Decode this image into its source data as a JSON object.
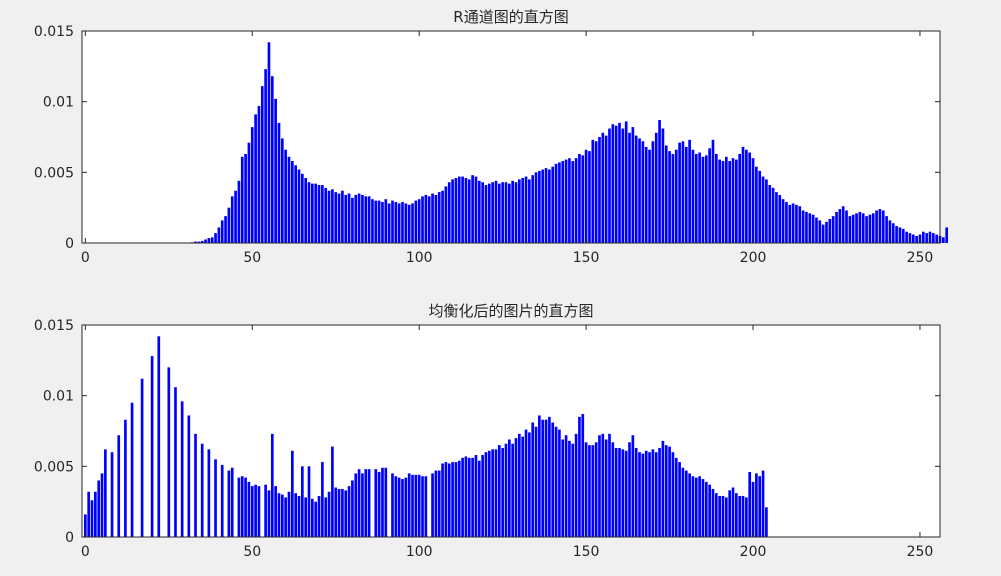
{
  "figure": {
    "background": "#f0f0f0",
    "axes_background": "#ffffff",
    "bar_color": "#0000ff"
  },
  "chart_data": [
    {
      "type": "bar",
      "title": "R通道图的直方图",
      "xlabel": "",
      "ylabel": "",
      "xlim": [
        -1,
        256
      ],
      "ylim": [
        0,
        0.015
      ],
      "xticks": [
        "0",
        "50",
        "100",
        "150",
        "200",
        "250"
      ],
      "yticks": [
        "0",
        "0.005",
        "0.01",
        "0.015"
      ],
      "grid": false,
      "legend": "none",
      "x_start": 0,
      "values": [
        0,
        0,
        0,
        0,
        0,
        0,
        0,
        0,
        0,
        0,
        0,
        0,
        0,
        0,
        0,
        0,
        0,
        0,
        0,
        0,
        0,
        0,
        0,
        0,
        0,
        0,
        0,
        0,
        0,
        0,
        0,
        0,
        5e-05,
        0.0001,
        0.0001,
        0.00015,
        0.00025,
        0.00035,
        0.0004,
        0.0007,
        0.0011,
        0.0016,
        0.0019,
        0.0025,
        0.0033,
        0.0037,
        0.0044,
        0.0061,
        0.0063,
        0.0071,
        0.0082,
        0.0091,
        0.0097,
        0.0111,
        0.0123,
        0.0142,
        0.0118,
        0.0102,
        0.0085,
        0.0074,
        0.0066,
        0.0061,
        0.0058,
        0.0055,
        0.0052,
        0.0049,
        0.0046,
        0.0043,
        0.0042,
        0.0042,
        0.0041,
        0.0041,
        0.0039,
        0.0037,
        0.0038,
        0.0036,
        0.0035,
        0.0037,
        0.0034,
        0.0035,
        0.0032,
        0.0034,
        0.0035,
        0.0034,
        0.0033,
        0.0033,
        0.0031,
        0.003,
        0.003,
        0.0029,
        0.0031,
        0.0028,
        0.003,
        0.0029,
        0.0028,
        0.0029,
        0.0028,
        0.0027,
        0.0028,
        0.003,
        0.0031,
        0.0033,
        0.0034,
        0.0033,
        0.0035,
        0.0034,
        0.0036,
        0.0037,
        0.004,
        0.0043,
        0.0045,
        0.0046,
        0.0047,
        0.0047,
        0.0046,
        0.0045,
        0.0048,
        0.0047,
        0.0044,
        0.0043,
        0.0041,
        0.0042,
        0.0043,
        0.0044,
        0.0042,
        0.0043,
        0.0043,
        0.0042,
        0.0044,
        0.0043,
        0.0045,
        0.0046,
        0.0047,
        0.0045,
        0.0048,
        0.005,
        0.0051,
        0.0052,
        0.0053,
        0.0052,
        0.0054,
        0.0056,
        0.0057,
        0.0058,
        0.0059,
        0.006,
        0.0058,
        0.006,
        0.0063,
        0.0062,
        0.0066,
        0.0065,
        0.0073,
        0.0072,
        0.0075,
        0.0078,
        0.0076,
        0.0081,
        0.0084,
        0.0083,
        0.0085,
        0.0081,
        0.0086,
        0.0078,
        0.0082,
        0.0076,
        0.0074,
        0.0072,
        0.0068,
        0.0066,
        0.0072,
        0.0078,
        0.0087,
        0.0081,
        0.0069,
        0.0065,
        0.0063,
        0.0066,
        0.0071,
        0.0072,
        0.0068,
        0.0073,
        0.0066,
        0.0063,
        0.0064,
        0.0061,
        0.0062,
        0.0067,
        0.0073,
        0.0063,
        0.0059,
        0.0058,
        0.0061,
        0.0058,
        0.006,
        0.0059,
        0.0063,
        0.0068,
        0.0066,
        0.0064,
        0.006,
        0.0054,
        0.0051,
        0.0047,
        0.0045,
        0.0041,
        0.0039,
        0.0036,
        0.0034,
        0.0031,
        0.0029,
        0.0027,
        0.0028,
        0.0027,
        0.0026,
        0.0023,
        0.0022,
        0.0021,
        0.002,
        0.0018,
        0.0016,
        0.0013,
        0.0015,
        0.0017,
        0.0019,
        0.0022,
        0.0024,
        0.0026,
        0.0023,
        0.0019,
        0.002,
        0.0021,
        0.0022,
        0.0021,
        0.0019,
        0.002,
        0.0021,
        0.0023,
        0.0024,
        0.0023,
        0.0019,
        0.0016,
        0.0014,
        0.0012,
        0.0011,
        0.001,
        0.0008,
        0.0007,
        0.0006,
        0.0005,
        0.0006,
        0.0008,
        0.0007,
        0.0008,
        0.0007,
        0.0006,
        0.0005,
        0.0004,
        0.0011
      ]
    },
    {
      "type": "bar",
      "title": "均衡化后的图片的直方图",
      "xlabel": "",
      "ylabel": "",
      "xlim": [
        -1,
        256
      ],
      "ylim": [
        0,
        0.015
      ],
      "xticks": [
        "0",
        "50",
        "100",
        "150",
        "200",
        "250"
      ],
      "yticks": [
        "0",
        "0.005",
        "0.01",
        "0.015"
      ],
      "grid": false,
      "legend": "none",
      "x_start": 0,
      "values": [
        0.0016,
        0.0032,
        0.0026,
        0.0032,
        0.004,
        0.0045,
        0.0062,
        0,
        0.006,
        0,
        0.0072,
        0,
        0.0083,
        0,
        0.0095,
        0,
        0,
        0.0112,
        0,
        0,
        0.0128,
        0,
        0.0142,
        0,
        0,
        0.012,
        0,
        0.0106,
        0,
        0.0096,
        0,
        0.0086,
        0,
        0.0073,
        0,
        0.0066,
        0,
        0.0062,
        0,
        0.0055,
        0,
        0.0051,
        0,
        0.0047,
        0.0049,
        0,
        0.0042,
        0.0043,
        0.0042,
        0.0039,
        0.0036,
        0.0037,
        0.0036,
        0,
        0.0037,
        0.0033,
        0.0073,
        0.0036,
        0.0031,
        0.003,
        0.0028,
        0.0032,
        0.0061,
        0.0031,
        0.0029,
        0.005,
        0.0028,
        0.005,
        0.0027,
        0.0025,
        0.0029,
        0.0053,
        0.0028,
        0.0032,
        0.0064,
        0.0035,
        0.0034,
        0.0034,
        0.0033,
        0.0036,
        0.004,
        0.0045,
        0.0048,
        0.0045,
        0.0048,
        0.0048,
        0,
        0.0048,
        0.0046,
        0.0049,
        0.0049,
        0,
        0.0045,
        0.0043,
        0.0042,
        0.0041,
        0.0042,
        0.0045,
        0.0044,
        0.0044,
        0.0044,
        0.0043,
        0.0043,
        0,
        0.0045,
        0.0047,
        0.0047,
        0.0052,
        0.0053,
        0.0052,
        0.0053,
        0.0053,
        0.0054,
        0.0056,
        0.0057,
        0.0056,
        0.0056,
        0.0058,
        0.0054,
        0.0058,
        0.006,
        0.0061,
        0.0062,
        0.0062,
        0.0065,
        0.0063,
        0.0066,
        0.0069,
        0.0066,
        0.007,
        0.0073,
        0.0071,
        0.0076,
        0.0074,
        0.0081,
        0.0078,
        0.0086,
        0.0083,
        0.0083,
        0.0085,
        0.0081,
        0.0078,
        0.0076,
        0.0069,
        0.0072,
        0.0068,
        0.0066,
        0.0073,
        0.0085,
        0.0087,
        0.0067,
        0.0065,
        0.0065,
        0.0067,
        0.0072,
        0.0073,
        0.0069,
        0.0073,
        0.0067,
        0.0063,
        0.0063,
        0.0062,
        0.0061,
        0.0067,
        0.0072,
        0.0063,
        0.006,
        0.0059,
        0.0061,
        0.006,
        0.0062,
        0.006,
        0.0063,
        0.0068,
        0.0065,
        0.0064,
        0.006,
        0.0056,
        0.0053,
        0.0049,
        0.0047,
        0.0045,
        0.0043,
        0.0042,
        0.0043,
        0.0041,
        0.0039,
        0.0037,
        0.0034,
        0.0031,
        0.0029,
        0.0029,
        0.0028,
        0.0033,
        0.0035,
        0.0031,
        0.0029,
        0.0029,
        0.0028,
        0.0046,
        0.0039,
        0.0045,
        0.0043,
        0.0047,
        0.0021
      ],
      "display_note": "This is equalized histogram - values drawn directly"
    }
  ]
}
